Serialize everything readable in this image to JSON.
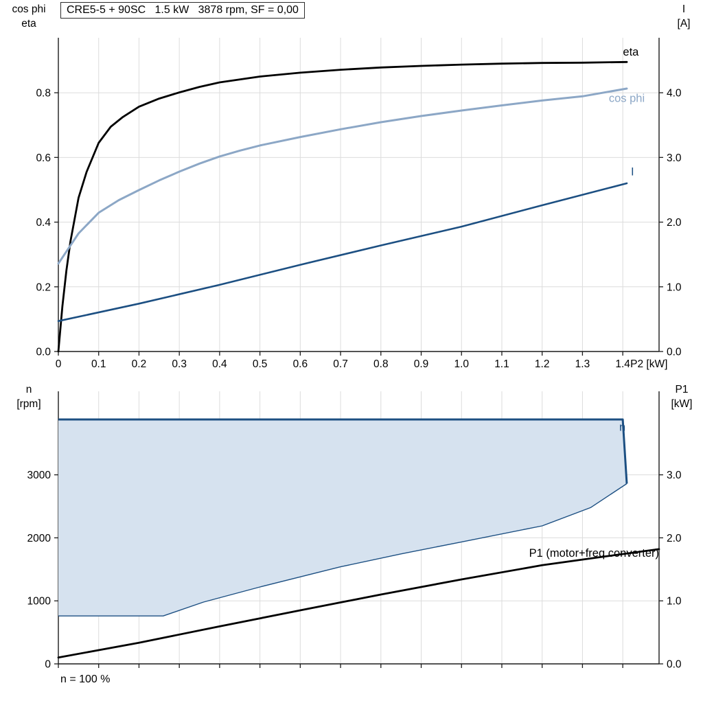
{
  "header": {
    "title": "CRE5-5 + 90SC   1.5 kW   3878 rpm, SF = 0,00"
  },
  "footer": {
    "note": "n = 100 %"
  },
  "axis_titles": {
    "top_left": [
      "cos phi",
      "eta"
    ],
    "top_right": [
      "I",
      "[A]"
    ],
    "bottom_left": [
      "n",
      "[rpm]"
    ],
    "bottom_right": [
      "P1",
      "[kW]"
    ]
  },
  "colors": {
    "eta": "#000000",
    "cos_phi": "#8CA7C6",
    "current": "#1C4F82",
    "envelope_fill": "#D6E2EF",
    "p1": "#000000",
    "grid": "#DCDCDC",
    "axis": "#1A1A1A"
  },
  "chart_data": [
    {
      "type": "line",
      "title": "CRE5-5 + 90SC   1.5 kW   3878 rpm, SF = 0,00",
      "x_axis": {
        "label": "P2 [kW]",
        "min": 0,
        "max": 1.49,
        "ticks": [
          0,
          0.1,
          0.2,
          0.3,
          0.4,
          0.5,
          0.6,
          0.7,
          0.8,
          0.9,
          1.0,
          1.1,
          1.2,
          1.3,
          1.4
        ],
        "tick_labels": [
          "0",
          "0.1",
          "0.2",
          "0.3",
          "0.4",
          "0.5",
          "0.6",
          "0.7",
          "0.8",
          "0.9",
          "1.0",
          "1.1",
          "1.2",
          "1.3",
          "1.4"
        ],
        "show_labels": true
      },
      "y_left": {
        "label": "cos phi / eta",
        "min": 0,
        "max": 0.97,
        "ticks": [
          0,
          0.2,
          0.4,
          0.6,
          0.8
        ],
        "tick_labels": [
          "0.0",
          "0.2",
          "0.4",
          "0.6",
          "0.8"
        ]
      },
      "y_right": {
        "label": "I [A]",
        "min": 0,
        "max": 4.85,
        "ticks": [
          0,
          1,
          2,
          3,
          4
        ],
        "tick_labels": [
          "0.0",
          "1.0",
          "2.0",
          "3.0",
          "4.0"
        ]
      },
      "series": [
        {
          "name": "eta",
          "kind": "line",
          "axis": "left",
          "color_key": "eta",
          "width": 2.8,
          "points": [
            [
              0,
              0
            ],
            [
              0.01,
              0.14
            ],
            [
              0.02,
              0.25
            ],
            [
              0.03,
              0.34
            ],
            [
              0.05,
              0.475
            ],
            [
              0.07,
              0.555
            ],
            [
              0.1,
              0.645
            ],
            [
              0.13,
              0.695
            ],
            [
              0.16,
              0.725
            ],
            [
              0.2,
              0.757
            ],
            [
              0.25,
              0.782
            ],
            [
              0.3,
              0.801
            ],
            [
              0.35,
              0.818
            ],
            [
              0.4,
              0.832
            ],
            [
              0.5,
              0.85
            ],
            [
              0.6,
              0.862
            ],
            [
              0.7,
              0.871
            ],
            [
              0.8,
              0.878
            ],
            [
              0.9,
              0.883
            ],
            [
              1.0,
              0.887
            ],
            [
              1.1,
              0.89
            ],
            [
              1.2,
              0.892
            ],
            [
              1.3,
              0.893
            ],
            [
              1.41,
              0.895
            ]
          ]
        },
        {
          "name": "cos phi",
          "kind": "line",
          "axis": "left",
          "color_key": "cos_phi",
          "width": 3.0,
          "points": [
            [
              0,
              0.272
            ],
            [
              0.05,
              0.365
            ],
            [
              0.1,
              0.429
            ],
            [
              0.15,
              0.468
            ],
            [
              0.2,
              0.499
            ],
            [
              0.25,
              0.529
            ],
            [
              0.3,
              0.556
            ],
            [
              0.35,
              0.581
            ],
            [
              0.4,
              0.603
            ],
            [
              0.45,
              0.621
            ],
            [
              0.5,
              0.637
            ],
            [
              0.6,
              0.663
            ],
            [
              0.7,
              0.687
            ],
            [
              0.8,
              0.709
            ],
            [
              0.9,
              0.728
            ],
            [
              1.0,
              0.745
            ],
            [
              1.1,
              0.761
            ],
            [
              1.2,
              0.776
            ],
            [
              1.3,
              0.789
            ],
            [
              1.41,
              0.813
            ]
          ]
        },
        {
          "name": "I",
          "kind": "line",
          "axis": "right",
          "color_key": "current",
          "width": 2.6,
          "points": [
            [
              0,
              0.47
            ],
            [
              0.2,
              0.74
            ],
            [
              0.4,
              1.03
            ],
            [
              0.6,
              1.34
            ],
            [
              0.8,
              1.64
            ],
            [
              1.0,
              1.93
            ],
            [
              1.2,
              2.26
            ],
            [
              1.41,
              2.6
            ]
          ]
        }
      ],
      "annotations": [
        {
          "text": "eta",
          "axis": "left",
          "x": 1.42,
          "y": 0.915,
          "anchor": "middle",
          "color_key": "eta"
        },
        {
          "text": "cos phi",
          "axis": "left",
          "x": 1.41,
          "y": 0.772,
          "anchor": "middle",
          "color_key": "cos_phi"
        },
        {
          "text": "I",
          "axis": "right",
          "x": 1.424,
          "y": 2.72,
          "anchor": "middle",
          "color_key": "current"
        }
      ]
    },
    {
      "type": "line+area",
      "title": "",
      "x_axis": {
        "label": "",
        "min": 0,
        "max": 1.49,
        "ticks": [
          0,
          0.1,
          0.2,
          0.3,
          0.4,
          0.5,
          0.6,
          0.7,
          0.8,
          0.9,
          1.0,
          1.1,
          1.2,
          1.3,
          1.4
        ],
        "tick_labels": [],
        "show_labels": false
      },
      "y_left": {
        "label": "n [rpm]",
        "min": 0,
        "max": 4325,
        "ticks": [
          0,
          1000,
          2000,
          3000
        ],
        "tick_labels": [
          "0",
          "1000",
          "2000",
          "3000"
        ]
      },
      "y_right": {
        "label": "P1 [kW]",
        "min": 0,
        "max": 4.325,
        "ticks": [
          0,
          1,
          2,
          3
        ],
        "tick_labels": [
          "0.0",
          "1.0",
          "2.0",
          "3.0"
        ]
      },
      "series": [
        {
          "name": "n",
          "kind": "envelope",
          "axis": "left",
          "color_key": "current",
          "fill_key": "envelope_fill",
          "upper_width": 3.0,
          "lower_width": 1.4,
          "upper": [
            [
              0,
              3878
            ],
            [
              1.4,
              3878
            ],
            [
              1.41,
              2860
            ]
          ],
          "lower": [
            [
              0,
              760
            ],
            [
              0.26,
              760
            ],
            [
              0.36,
              980
            ],
            [
              0.5,
              1220
            ],
            [
              0.7,
              1540
            ],
            [
              0.85,
              1745
            ],
            [
              1.0,
              1935
            ],
            [
              1.2,
              2190
            ],
            [
              1.32,
              2480
            ],
            [
              1.41,
              2860
            ]
          ]
        },
        {
          "name": "P1 (motor+freq converter)",
          "kind": "line",
          "axis": "right",
          "color_key": "p1",
          "width": 2.8,
          "points": [
            [
              0,
              0.1
            ],
            [
              0.2,
              0.335
            ],
            [
              0.4,
              0.595
            ],
            [
              0.6,
              0.85
            ],
            [
              0.8,
              1.1
            ],
            [
              1.0,
              1.34
            ],
            [
              1.2,
              1.565
            ],
            [
              1.35,
              1.7
            ],
            [
              1.49,
              1.82
            ]
          ]
        }
      ],
      "annotations": [
        {
          "text": "n",
          "axis": "left",
          "x": 1.399,
          "y": 3700,
          "anchor": "middle",
          "color_key": "current"
        },
        {
          "text": "P1 (motor+freq converter)",
          "axis": "right",
          "x": 1.49,
          "y": 1.7,
          "anchor": "end",
          "color_key": "p1"
        }
      ]
    }
  ]
}
